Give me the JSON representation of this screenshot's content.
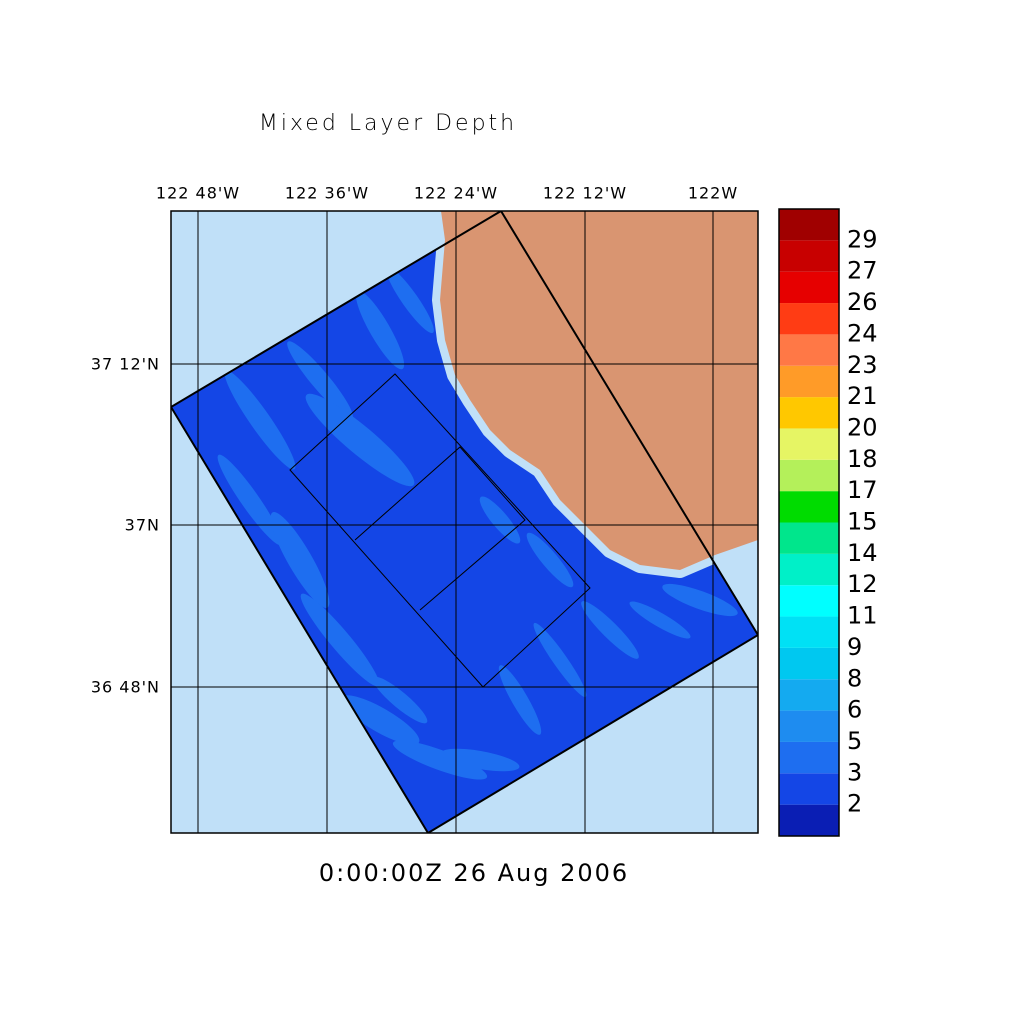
{
  "title": "Mixed Layer Depth",
  "map": {
    "lon_labels": [
      "122 48'W",
      "122 36'W",
      "122 24'W",
      "122 12'W",
      "122W"
    ],
    "lat_labels": [
      "37 12'N",
      "37N",
      "36 48'N"
    ]
  },
  "colorbar": {
    "labels": [
      2,
      3,
      5,
      6,
      8,
      9,
      11,
      12,
      14,
      15,
      17,
      18,
      20,
      21,
      23,
      24,
      26,
      27,
      29
    ],
    "colors": [
      "#0a1eb4",
      "#1446e6",
      "#1e6ef0",
      "#1e8cf0",
      "#14aaf0",
      "#00c8f0",
      "#00e1f5",
      "#00ffff",
      "#00f0c8",
      "#00e68c",
      "#00dc00",
      "#b4f05a",
      "#e6f564",
      "#ffc800",
      "#ff9b28",
      "#ff7846",
      "#ff3c14",
      "#e60000",
      "#c80000",
      "#a00000"
    ]
  },
  "timestamp": "0:00:00Z  26 Aug 2006"
}
